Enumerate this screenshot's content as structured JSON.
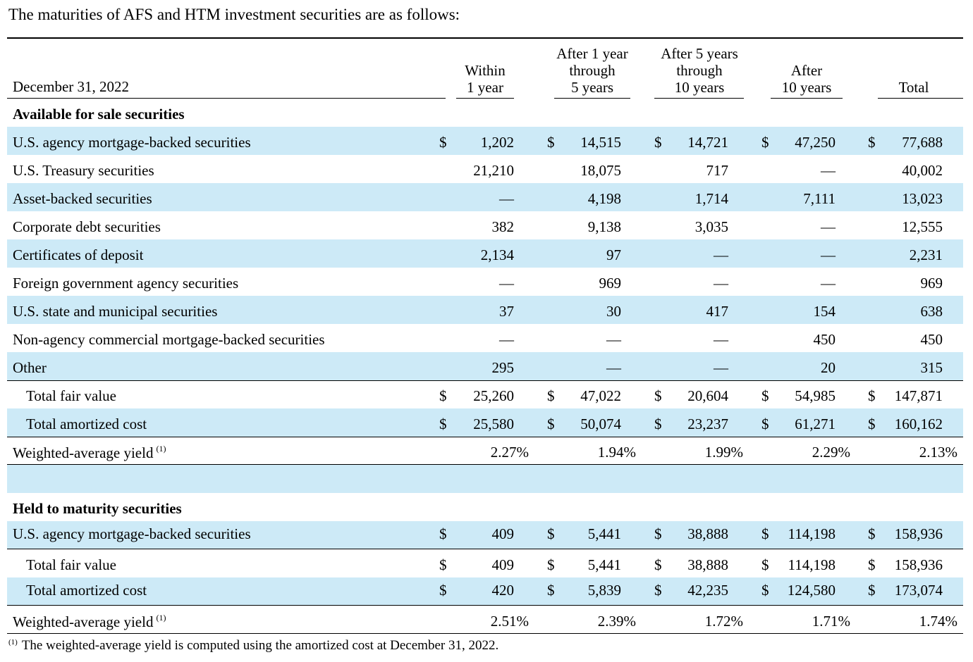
{
  "intro": "The maturities of AFS and HTM investment securities are as follows:",
  "header": {
    "date": "December 31, 2022",
    "cols": [
      [
        "Within",
        "1 year"
      ],
      [
        "After 1 year",
        "through",
        "5 years"
      ],
      [
        "After 5 years",
        "through",
        "10 years"
      ],
      [
        "After",
        "10 years"
      ],
      [
        "Total"
      ]
    ]
  },
  "afs": {
    "title": "Available for sale securities",
    "rows": [
      {
        "label": "U.S. agency mortgage-backed securities",
        "dollar": "$",
        "values": [
          "1,202",
          "14,515",
          "14,721",
          "47,250",
          "77,688"
        ]
      },
      {
        "label": "U.S. Treasury securities",
        "values": [
          "21,210",
          "18,075",
          "717",
          "—",
          "40,002"
        ]
      },
      {
        "label": "Asset-backed securities",
        "values": [
          "—",
          "4,198",
          "1,714",
          "7,111",
          "13,023"
        ]
      },
      {
        "label": "Corporate debt securities",
        "values": [
          "382",
          "9,138",
          "3,035",
          "—",
          "12,555"
        ]
      },
      {
        "label": "Certificates of deposit",
        "values": [
          "2,134",
          "97",
          "—",
          "—",
          "2,231"
        ]
      },
      {
        "label": "Foreign government agency securities",
        "values": [
          "—",
          "969",
          "—",
          "—",
          "969"
        ]
      },
      {
        "label": "U.S. state and municipal securities",
        "values": [
          "37",
          "30",
          "417",
          "154",
          "638"
        ]
      },
      {
        "label": "Non-agency commercial mortgage-backed securities",
        "values": [
          "—",
          "—",
          "—",
          "450",
          "450"
        ]
      },
      {
        "label": "Other",
        "values": [
          "295",
          "—",
          "—",
          "20",
          "315"
        ]
      }
    ],
    "total_fair_value": {
      "label": "Total fair value",
      "dollar": "$",
      "values": [
        "25,260",
        "47,022",
        "20,604",
        "54,985",
        "147,871"
      ]
    },
    "total_amortized_cost": {
      "label": "Total amortized cost",
      "dollar": "$",
      "values": [
        "25,580",
        "50,074",
        "23,237",
        "61,271",
        "160,162"
      ]
    },
    "yield": {
      "label": "Weighted-average yield",
      "footnote": "(1)",
      "values": [
        "2.27%",
        "1.94%",
        "1.99%",
        "2.29%",
        "2.13%"
      ]
    }
  },
  "htm": {
    "title": "Held to maturity securities",
    "rows": [
      {
        "label": "U.S. agency mortgage-backed securities",
        "dollar": "$",
        "values": [
          "409",
          "5,441",
          "38,888",
          "114,198",
          "158,936"
        ]
      }
    ],
    "total_fair_value": {
      "label": "Total fair value",
      "dollar": "$",
      "values": [
        "409",
        "5,441",
        "38,888",
        "114,198",
        "158,936"
      ]
    },
    "total_amortized_cost": {
      "label": "Total amortized cost",
      "dollar": "$",
      "values": [
        "420",
        "5,839",
        "42,235",
        "124,580",
        "173,074"
      ]
    },
    "yield": {
      "label": "Weighted-average yield",
      "footnote": "(1)",
      "values": [
        "2.51%",
        "2.39%",
        "1.72%",
        "1.71%",
        "1.74%"
      ]
    }
  },
  "footnote": {
    "marker": "(1)",
    "text": "The weighted-average yield is computed using the amortized cost at December 31, 2022."
  }
}
